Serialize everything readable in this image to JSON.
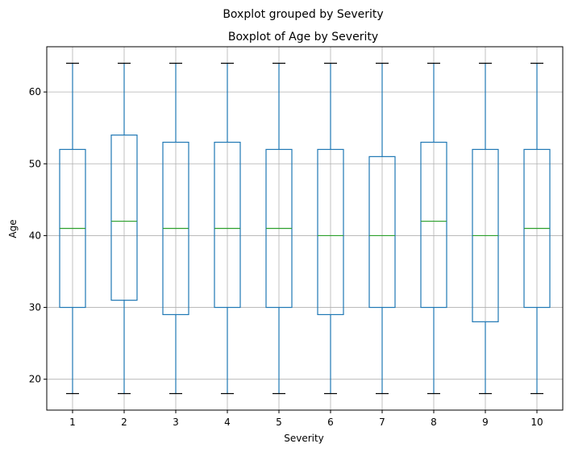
{
  "chart_data": {
    "type": "boxplot",
    "suptitle": "Boxplot grouped by Severity",
    "title": "Boxplot of Age by Severity",
    "xlabel": "Severity",
    "ylabel": "Age",
    "categories": [
      "1",
      "2",
      "3",
      "4",
      "5",
      "6",
      "7",
      "8",
      "9",
      "10"
    ],
    "yticks": [
      20,
      30,
      40,
      50,
      60
    ],
    "ylim": [
      15.7,
      66.3
    ],
    "grid": true,
    "boxes": [
      {
        "category": "1",
        "whislo": 18,
        "q1": 30,
        "median": 41,
        "q3": 52,
        "whishi": 64
      },
      {
        "category": "2",
        "whislo": 18,
        "q1": 31,
        "median": 42,
        "q3": 54,
        "whishi": 64
      },
      {
        "category": "3",
        "whislo": 18,
        "q1": 29,
        "median": 41,
        "q3": 53,
        "whishi": 64
      },
      {
        "category": "4",
        "whislo": 18,
        "q1": 30,
        "median": 41,
        "q3": 53,
        "whishi": 64
      },
      {
        "category": "5",
        "whislo": 18,
        "q1": 30,
        "median": 41,
        "q3": 52,
        "whishi": 64
      },
      {
        "category": "6",
        "whislo": 18,
        "q1": 29,
        "median": 40,
        "q3": 52,
        "whishi": 64
      },
      {
        "category": "7",
        "whislo": 18,
        "q1": 30,
        "median": 40,
        "q3": 51,
        "whishi": 64
      },
      {
        "category": "8",
        "whislo": 18,
        "q1": 30,
        "median": 42,
        "q3": 53,
        "whishi": 64
      },
      {
        "category": "9",
        "whislo": 18,
        "q1": 28,
        "median": 40,
        "q3": 52,
        "whishi": 64
      },
      {
        "category": "10",
        "whislo": 18,
        "q1": 30,
        "median": 41,
        "q3": 52,
        "whishi": 64
      }
    ],
    "colors": {
      "box": "#1f77b4",
      "median": "#2ca02c",
      "cap": "#000000",
      "grid": "#b0b0b0"
    }
  }
}
